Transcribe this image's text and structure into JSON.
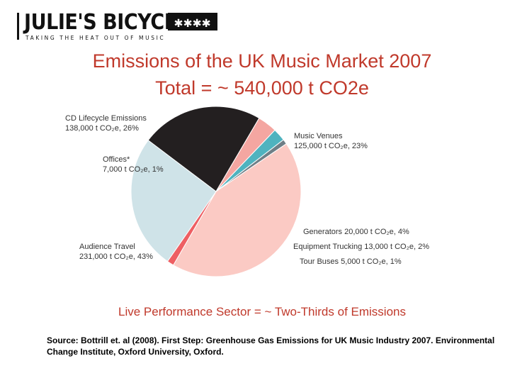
{
  "logo": {
    "name": "JULIE'S BICYCLE",
    "tagline": "TAKING THE HEAT OUT OF MUSIC",
    "stars": "✱✱✱✱"
  },
  "header": {
    "title_line1": "Emissions of the UK Music Market 2007",
    "title_line2": "Total = ~ 540,000 t CO2e"
  },
  "chart_data": {
    "type": "pie",
    "title": "Emissions of the UK Music Market 2007",
    "subtitle": "Total = ~ 540,000 t CO2e",
    "slices": [
      {
        "name": "Music Venues",
        "value": 125000,
        "percent": 23,
        "color": "#231f20",
        "label_line1": "Music Venues",
        "label_line2": "125,000 t CO₂e, 23%"
      },
      {
        "name": "Generators",
        "value": 20000,
        "percent": 4,
        "color": "#f4a6a1",
        "label_line1": "Generators 20,000 t CO₂e, 4%",
        "label_line2": ""
      },
      {
        "name": "Equipment Trucking",
        "value": 13000,
        "percent": 2,
        "color": "#4fb3bf",
        "label_line1": "Equipment Trucking 13,000 t CO₂e, 2%",
        "label_line2": ""
      },
      {
        "name": "Tour Buses",
        "value": 5000,
        "percent": 1,
        "color": "#6f7f87",
        "label_line1": "Tour Buses 5,000 t CO₂e, 1%",
        "label_line2": ""
      },
      {
        "name": "Audience Travel",
        "value": 231000,
        "percent": 43,
        "color": "#fbcac4",
        "label_line1": "Audience Travel",
        "label_line2": "231,000 t CO₂e, 43%"
      },
      {
        "name": "Offices*",
        "value": 7000,
        "percent": 1,
        "color": "#ee5f63",
        "label_line1": "Offices*",
        "label_line2": "7,000 t CO₂e, 1%"
      },
      {
        "name": "CD Lifecycle Emissions",
        "value": 138000,
        "percent": 26,
        "color": "#cfe3e8",
        "label_line1": "CD Lifecycle Emissions",
        "label_line2": "138,000 t CO₂e, 26%"
      }
    ]
  },
  "footer": {
    "subtitle": "Live Performance Sector = ~ Two-Thirds of Emissions",
    "source": "Source: Bottrill et. al (2008). First Step: Greenhouse Gas Emissions for UK Music Industry 2007. Environmental Change Institute, Oxford University, Oxford."
  }
}
